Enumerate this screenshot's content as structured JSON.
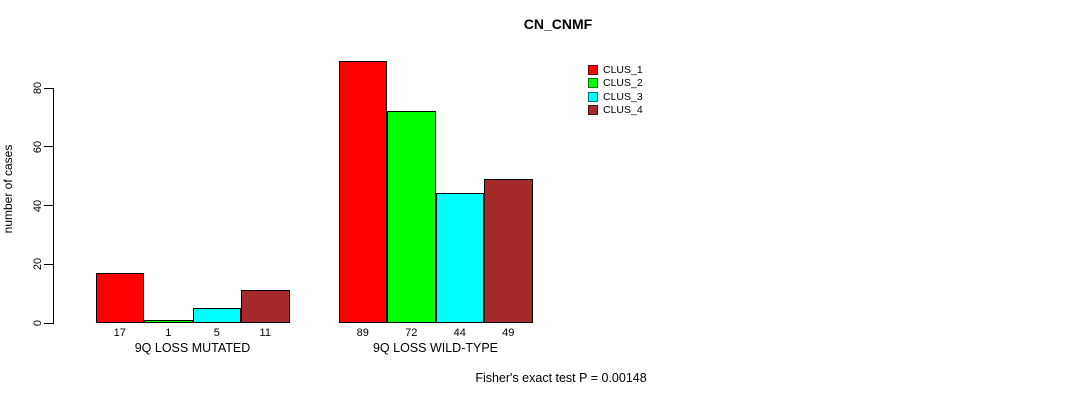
{
  "chart_data": {
    "type": "bar",
    "title": "CN_CNMF",
    "ylabel": "number of cases",
    "xlabel": "",
    "ylim": [
      0,
      89
    ],
    "yticks": [
      0,
      20,
      40,
      60,
      80
    ],
    "grid": false,
    "legend_position": "top-right",
    "categories": [
      "9Q LOSS MUTATED",
      "9Q LOSS WILD-TYPE"
    ],
    "series": [
      {
        "name": "CLUS_1",
        "color": "#FF0000",
        "values": [
          17,
          89
        ]
      },
      {
        "name": "CLUS_2",
        "color": "#00FF00",
        "values": [
          1,
          72
        ]
      },
      {
        "name": "CLUS_3",
        "color": "#00FFFF",
        "values": [
          5,
          44
        ]
      },
      {
        "name": "CLUS_4",
        "color": "#A52A2A",
        "values": [
          11,
          49
        ]
      }
    ],
    "bar_value_labels": [
      [
        17,
        1,
        5,
        11
      ],
      [
        89,
        72,
        44,
        49
      ]
    ],
    "annotation": "Fisher's exact test P = 0.00148",
    "axis_color": "#000000"
  }
}
